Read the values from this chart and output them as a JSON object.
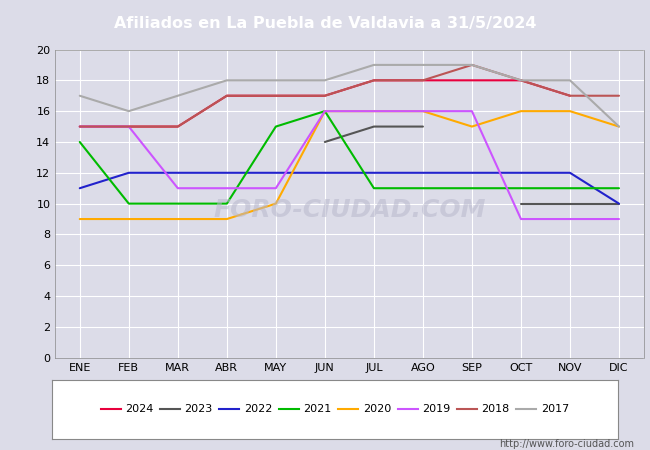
{
  "title": "Afiliados en La Puebla de Valdavia a 31/5/2024",
  "months": [
    "ENE",
    "FEB",
    "MAR",
    "ABR",
    "MAY",
    "JUN",
    "JUL",
    "AGO",
    "SEP",
    "OCT",
    "NOV",
    "DIC"
  ],
  "ylim": [
    0,
    20
  ],
  "yticks": [
    0,
    2,
    4,
    6,
    8,
    10,
    12,
    14,
    16,
    18,
    20
  ],
  "series": {
    "2024": {
      "color": "#e8003d",
      "values": [
        15,
        15,
        15,
        17,
        17,
        17,
        18,
        18,
        18,
        18,
        17,
        null
      ],
      "linewidth": 1.5
    },
    "2023": {
      "color": "#555555",
      "values": [
        null,
        null,
        null,
        null,
        null,
        14,
        15,
        15,
        null,
        10,
        10,
        10
      ],
      "linewidth": 1.5
    },
    "2022": {
      "color": "#2222cc",
      "values": [
        11,
        12,
        12,
        12,
        12,
        12,
        12,
        12,
        12,
        12,
        12,
        10
      ],
      "linewidth": 1.5
    },
    "2021": {
      "color": "#00bb00",
      "values": [
        14,
        10,
        10,
        10,
        15,
        16,
        11,
        11,
        11,
        11,
        11,
        11
      ],
      "linewidth": 1.5
    },
    "2020": {
      "color": "#ffaa00",
      "values": [
        9,
        9,
        9,
        9,
        10,
        16,
        16,
        16,
        15,
        16,
        16,
        15
      ],
      "linewidth": 1.5
    },
    "2019": {
      "color": "#cc55ff",
      "values": [
        15,
        15,
        11,
        11,
        11,
        16,
        16,
        16,
        16,
        9,
        9,
        9
      ],
      "linewidth": 1.5
    },
    "2018": {
      "color": "#bb5555",
      "values": [
        15,
        15,
        15,
        17,
        17,
        17,
        18,
        18,
        19,
        18,
        17,
        17
      ],
      "linewidth": 1.5
    },
    "2017": {
      "color": "#aaaaaa",
      "values": [
        17,
        16,
        17,
        18,
        18,
        18,
        19,
        19,
        19,
        18,
        18,
        15
      ],
      "linewidth": 1.5
    }
  },
  "url": "http://www.foro-ciudad.com",
  "bg_color": "#dcdce8",
  "plot_bg_color": "#dcdce8",
  "title_bg_color": "#5577cc",
  "grid_color": "#ffffff",
  "legend_order": [
    "2024",
    "2023",
    "2022",
    "2021",
    "2020",
    "2019",
    "2018",
    "2017"
  ]
}
